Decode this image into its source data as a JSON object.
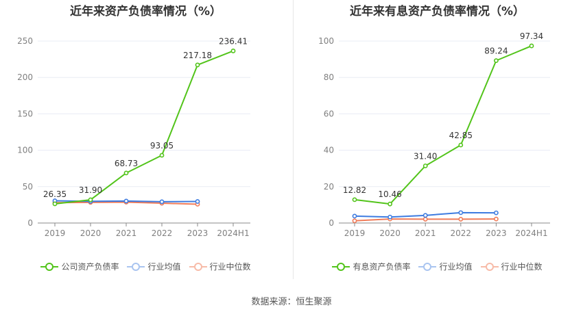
{
  "footer": {
    "source": "数据来源：恒生聚源"
  },
  "chart_data": [
    {
      "type": "line",
      "title": "近年来资产负债率情况（%）",
      "categories": [
        "2019",
        "2020",
        "2021",
        "2022",
        "2023",
        "2024H1"
      ],
      "yticks": [
        0,
        50,
        100,
        150,
        200,
        250
      ],
      "ylim": [
        0,
        250
      ],
      "grid": true,
      "legend_position": "bottom",
      "series": [
        {
          "name": "公司资产负债率",
          "color": "#52c41a",
          "values": [
            26.35,
            31.9,
            68.73,
            93.05,
            217.18,
            236.41
          ],
          "labels": [
            "26.35",
            "31.90",
            "68.73",
            "93.05",
            "217.18",
            "236.41"
          ]
        },
        {
          "name": "行业均值",
          "color": "#3d7be0",
          "values": [
            30.5,
            29.8,
            30.2,
            29.2,
            29.6,
            null
          ]
        },
        {
          "name": "行业中位数",
          "color": "#f07b58",
          "values": [
            28.0,
            28.3,
            28.7,
            27.2,
            25.9,
            null
          ]
        }
      ]
    },
    {
      "type": "line",
      "title": "近年来有息资产负债率情况（%）",
      "categories": [
        "2019",
        "2020",
        "2021",
        "2022",
        "2023",
        "2024H1"
      ],
      "yticks": [
        0,
        20,
        40,
        60,
        80,
        100
      ],
      "ylim": [
        0,
        100
      ],
      "grid": true,
      "legend_position": "bottom",
      "series": [
        {
          "name": "有息资产负债率",
          "color": "#52c41a",
          "values": [
            12.82,
            10.46,
            31.4,
            42.85,
            89.24,
            97.34
          ],
          "labels": [
            "12.82",
            "10.46",
            "31.40",
            "42.85",
            "89.24",
            "97.34"
          ]
        },
        {
          "name": "行业均值",
          "color": "#3d7be0",
          "values": [
            3.8,
            3.3,
            4.2,
            5.7,
            5.6,
            null
          ]
        },
        {
          "name": "行业中位数",
          "color": "#f07b58",
          "values": [
            1.2,
            2.2,
            2.1,
            2.1,
            2.2,
            null
          ]
        }
      ]
    }
  ]
}
